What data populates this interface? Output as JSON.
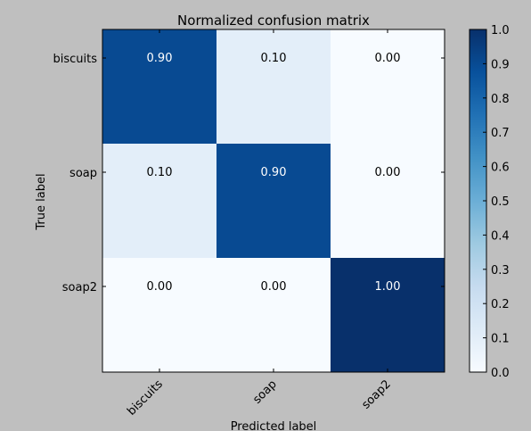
{
  "chart_data": {
    "type": "heatmap",
    "title": "Normalized confusion matrix",
    "xlabel": "Predicted label",
    "ylabel": "True label",
    "x_categories": [
      "biscuits",
      "soap",
      "soap2"
    ],
    "y_categories": [
      "biscuits",
      "soap",
      "soap2"
    ],
    "values": [
      [
        0.9,
        0.1,
        0.0
      ],
      [
        0.1,
        0.9,
        0.0
      ],
      [
        0.0,
        0.0,
        1.0
      ]
    ],
    "cell_labels": [
      [
        "0.90",
        "0.10",
        "0.00"
      ],
      [
        "0.10",
        "0.90",
        "0.00"
      ],
      [
        "0.00",
        "0.00",
        "1.00"
      ]
    ],
    "colorbar": {
      "range": [
        0.0,
        1.0
      ],
      "ticks": [
        "0.0",
        "0.1",
        "0.2",
        "0.3",
        "0.4",
        "0.5",
        "0.6",
        "0.7",
        "0.8",
        "0.9",
        "1.0"
      ]
    },
    "colormap": "Blues",
    "colors": {
      "low": "#f7fbff",
      "high": "#08306b",
      "background": "#bfbfbf"
    }
  }
}
